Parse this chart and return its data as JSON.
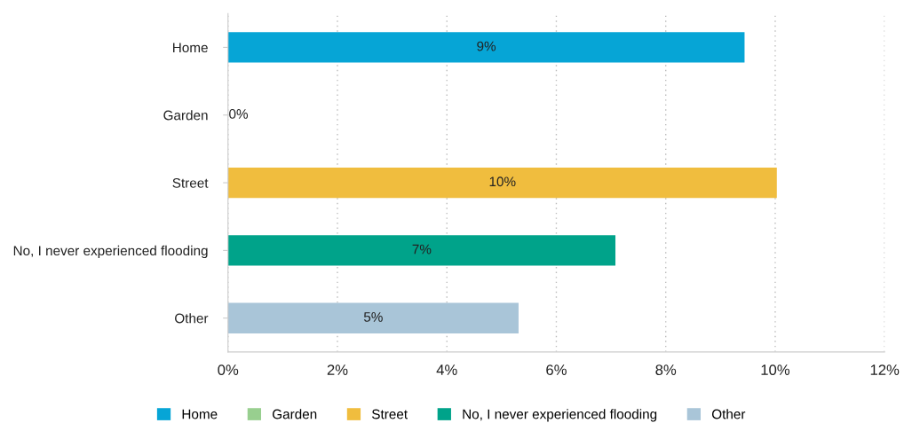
{
  "chart_data": {
    "type": "bar",
    "orientation": "horizontal",
    "categories": [
      "Home",
      "Garden",
      "Street",
      "No, I never experienced flooding",
      "Other"
    ],
    "series": [
      {
        "name": "Home",
        "color": "#06a5d6",
        "values": [
          9.44,
          null,
          null,
          null,
          null
        ],
        "value_labels": [
          "9%",
          null,
          null,
          null,
          null
        ]
      },
      {
        "name": "Garden",
        "color": "#98cf8f",
        "values": [
          null,
          0,
          null,
          null,
          null
        ],
        "value_labels": [
          null,
          "0%",
          null,
          null,
          null
        ]
      },
      {
        "name": "Street",
        "color": "#f0bd3e",
        "values": [
          null,
          null,
          10.03,
          null,
          null
        ],
        "value_labels": [
          null,
          null,
          "10%",
          null,
          null
        ]
      },
      {
        "name": "No, I never experienced flooding",
        "color": "#00a38a",
        "values": [
          null,
          null,
          null,
          7.08,
          null
        ],
        "value_labels": [
          null,
          null,
          null,
          "7%",
          null
        ]
      },
      {
        "name": "Other",
        "color": "#a9c5d8",
        "values": [
          null,
          null,
          null,
          null,
          5.31
        ],
        "value_labels": [
          null,
          null,
          null,
          null,
          "5%"
        ]
      }
    ],
    "xlim": [
      0,
      12
    ],
    "xticks": [
      {
        "value": 0,
        "label": "0%"
      },
      {
        "value": 2,
        "label": "2%"
      },
      {
        "value": 4,
        "label": "4%"
      },
      {
        "value": 6,
        "label": "6%"
      },
      {
        "value": 8,
        "label": "8%"
      },
      {
        "value": 10,
        "label": "10%"
      },
      {
        "value": 12,
        "label": "12%"
      }
    ],
    "grid": "x",
    "legend": "bottom"
  }
}
